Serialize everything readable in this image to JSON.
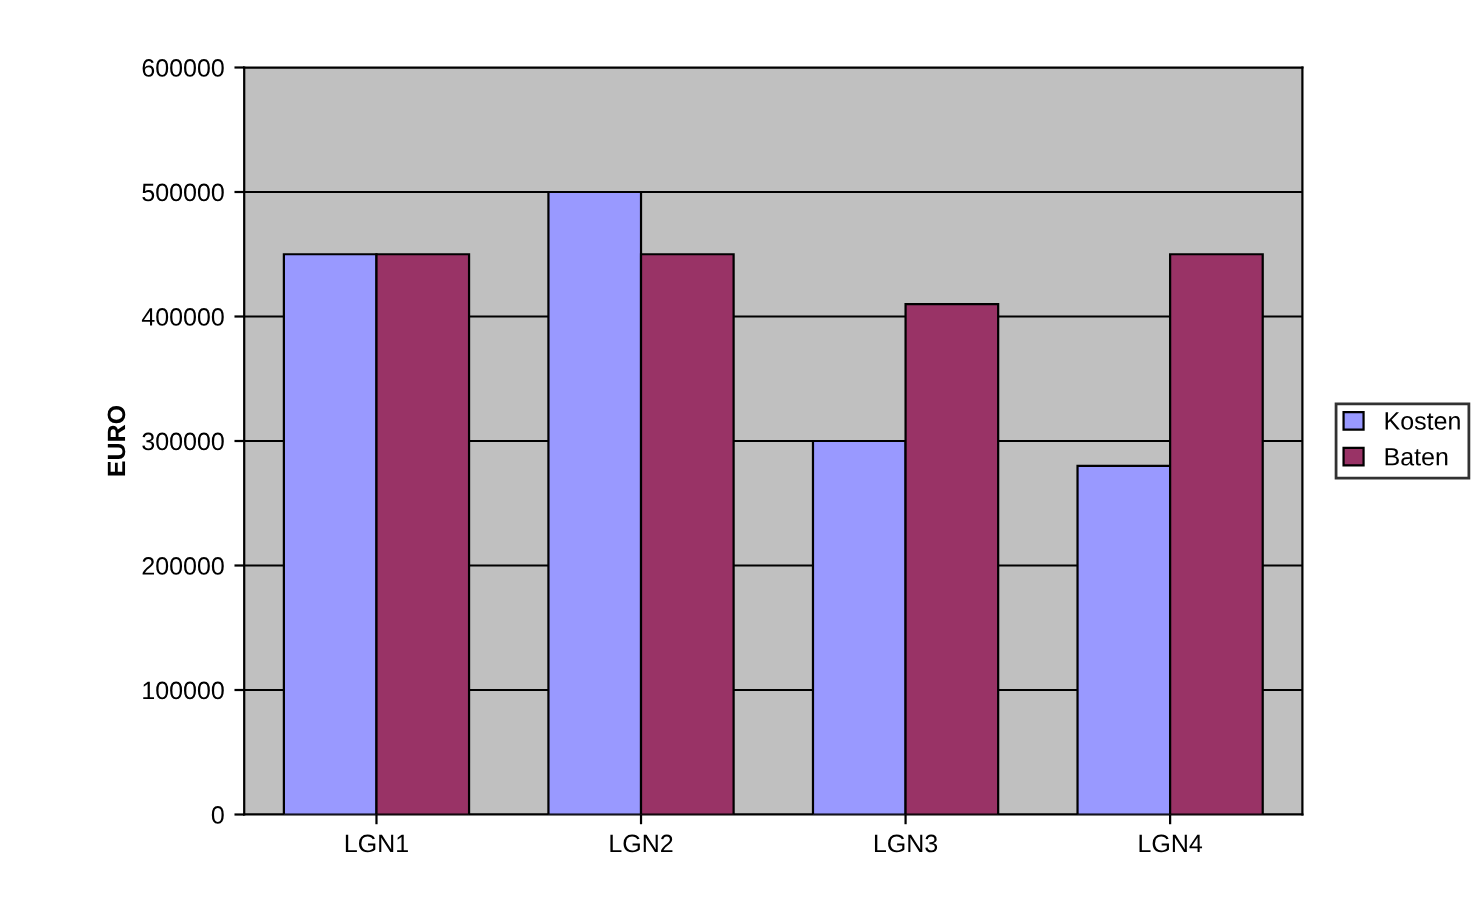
{
  "chart_data": {
    "type": "bar",
    "ylabel": "EURO",
    "categories": [
      "LGN1",
      "LGN2",
      "LGN3",
      "LGN4"
    ],
    "series": [
      {
        "name": "Kosten",
        "color": "#9999ff",
        "values": [
          450000,
          500000,
          300000,
          280000
        ]
      },
      {
        "name": "Baten",
        "color": "#993366",
        "values": [
          450000,
          450000,
          410000,
          450000
        ]
      }
    ],
    "ylim": [
      0,
      600000
    ],
    "yticks": [
      0,
      100000,
      200000,
      300000,
      400000,
      500000,
      600000
    ],
    "grid": "y",
    "legend": "right"
  }
}
